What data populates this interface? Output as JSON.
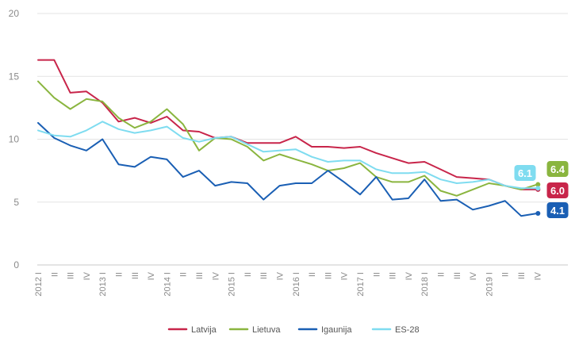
{
  "chart_data": {
    "type": "line",
    "title": "",
    "xlabel": "",
    "ylabel": "",
    "ylim": [
      0,
      20
    ],
    "yticks": [
      "0",
      "5",
      "10",
      "15",
      "20"
    ],
    "grid": true,
    "legend_position": "bottom-center",
    "categories": [
      "2012 I",
      "II",
      "III",
      "IV",
      "2013 I",
      "II",
      "III",
      "IV",
      "2014 I",
      "II",
      "III",
      "IV",
      "2015 I",
      "II",
      "III",
      "IV",
      "2016 I",
      "II",
      "III",
      "IV",
      "2017 I",
      "II",
      "III",
      "IV",
      "2018 I",
      "II",
      "III",
      "IV",
      "2019 I",
      "II",
      "III",
      "IV"
    ],
    "series": [
      {
        "name": "Latvija",
        "color": "#c8254a",
        "end_label": "6.0",
        "values": [
          16.3,
          16.3,
          13.7,
          13.8,
          12.9,
          11.4,
          11.7,
          11.3,
          11.8,
          10.7,
          10.6,
          10.1,
          10.2,
          9.7,
          9.7,
          9.7,
          10.2,
          9.4,
          9.4,
          9.3,
          9.4,
          8.9,
          8.5,
          8.1,
          8.2,
          7.6,
          7.0,
          6.9,
          6.8,
          6.3,
          6.0,
          6.0
        ]
      },
      {
        "name": "Lietuva",
        "color": "#8ab53f",
        "end_label": "6.4",
        "values": [
          14.6,
          13.3,
          12.4,
          13.2,
          13.0,
          11.7,
          10.9,
          11.4,
          12.4,
          11.2,
          9.1,
          10.1,
          10.0,
          9.4,
          8.3,
          8.8,
          8.4,
          8.0,
          7.5,
          7.7,
          8.1,
          7.0,
          6.6,
          6.6,
          7.1,
          5.9,
          5.5,
          6.0,
          6.5,
          6.3,
          6.0,
          6.4
        ]
      },
      {
        "name": "Igaunija",
        "color": "#1a5fb4",
        "end_label": "4.1",
        "values": [
          11.3,
          10.1,
          9.5,
          9.1,
          10.0,
          8.0,
          7.8,
          8.6,
          8.4,
          7.0,
          7.5,
          6.3,
          6.6,
          6.5,
          5.2,
          6.3,
          6.5,
          6.5,
          7.5,
          6.6,
          5.6,
          7.0,
          5.2,
          5.3,
          6.8,
          5.1,
          5.2,
          4.4,
          4.7,
          5.1,
          3.9,
          4.1
        ]
      },
      {
        "name": "ES-28",
        "color": "#7fdcf0",
        "end_label": "6.1",
        "values": [
          10.7,
          10.3,
          10.2,
          10.7,
          11.4,
          10.8,
          10.5,
          10.7,
          11.0,
          10.1,
          9.8,
          10.1,
          10.2,
          9.6,
          9.0,
          9.1,
          9.2,
          8.6,
          8.2,
          8.3,
          8.3,
          7.6,
          7.3,
          7.3,
          7.4,
          6.8,
          6.5,
          6.6,
          6.8,
          6.3,
          6.1,
          6.1
        ]
      }
    ]
  }
}
